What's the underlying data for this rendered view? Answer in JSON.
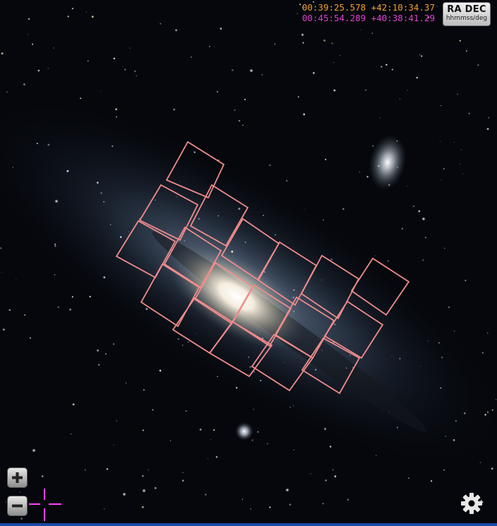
{
  "coordinates": {
    "line1": "00:39:25.578 +42:10:34.37",
    "line2": "00:45:54.289 +40:38:41.29"
  },
  "radec_button": {
    "title": "RA DEC",
    "subtitle": "hhmmss/deg"
  },
  "zoom": {
    "in_icon": "plus-icon",
    "out_icon": "minus-icon"
  },
  "settings_icon": "gear-icon",
  "footprint_color": "#f08c8c",
  "crosshair_color": "#ff40ff"
}
